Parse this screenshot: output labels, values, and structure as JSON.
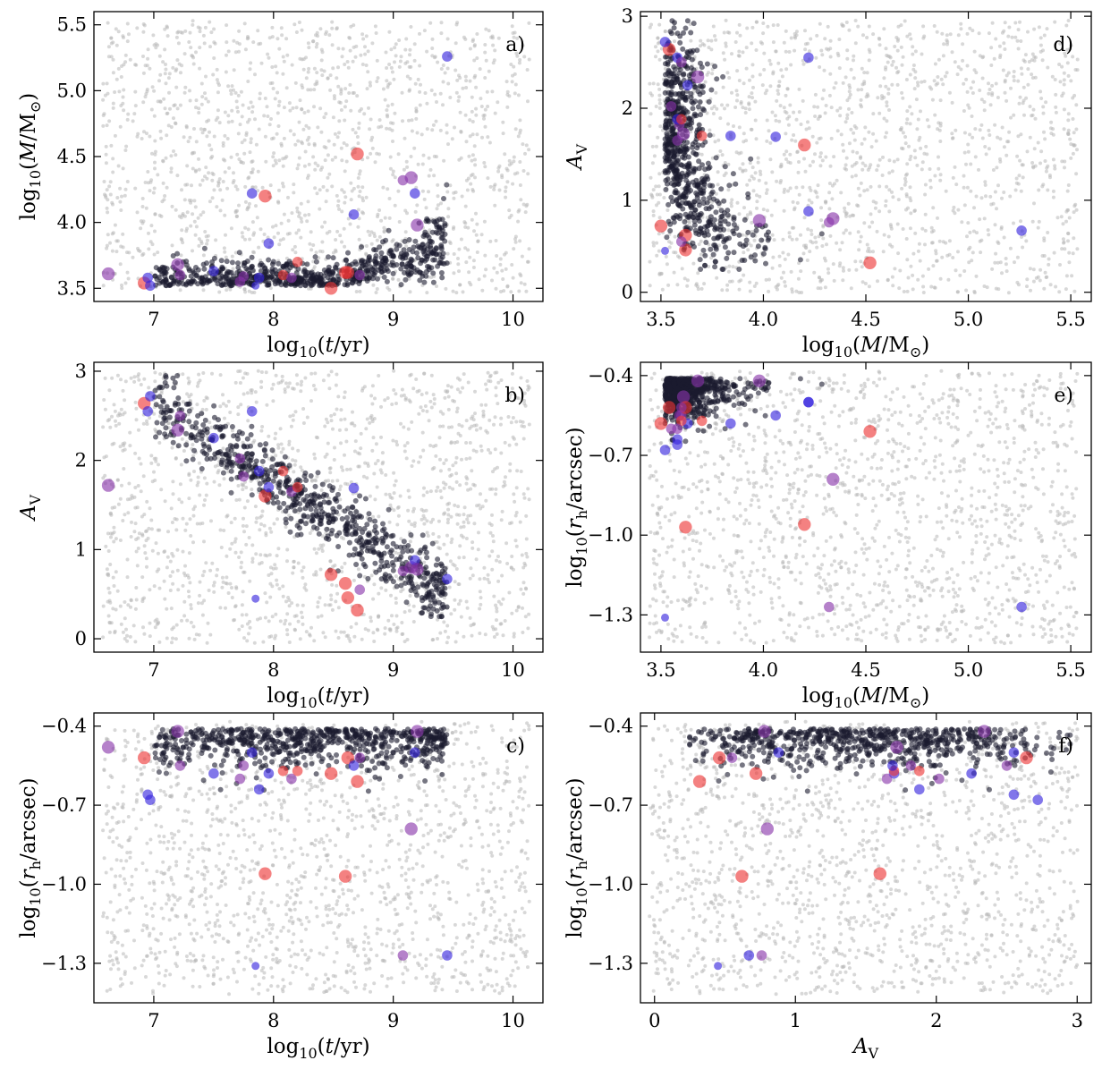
{
  "chart_data": [
    {
      "id": "a",
      "type": "scatter",
      "panel_label": "a)",
      "xlabel_parts": [
        "log",
        "10",
        "(",
        "t",
        "/yr)"
      ],
      "ylabel_parts": [
        "log",
        "10",
        "(",
        "M",
        "/M",
        "⊙",
        ")"
      ],
      "xlim": [
        6.5,
        10.25
      ],
      "ylim": [
        3.4,
        5.6
      ],
      "xticks": [
        7,
        8,
        9,
        10
      ],
      "xtick_labels": [
        "7",
        "8",
        "9",
        "10"
      ],
      "yticks": [
        3.5,
        4.0,
        4.5,
        5.0,
        5.5
      ],
      "ytick_labels": [
        "3.5",
        "4.0",
        "4.5",
        "5.0",
        "5.5"
      ],
      "x_var": "logt",
      "y_var": "logM",
      "background_grey_points": "uniform"
    },
    {
      "id": "b",
      "type": "scatter",
      "panel_label": "b)",
      "xlabel_parts": [
        "log",
        "10",
        "(",
        "t",
        "/yr)"
      ],
      "ylabel_parts": [
        "A",
        "V"
      ],
      "xlim": [
        6.5,
        10.25
      ],
      "ylim": [
        -0.15,
        3.1
      ],
      "xticks": [
        7,
        8,
        9,
        10
      ],
      "xtick_labels": [
        "7",
        "8",
        "9",
        "10"
      ],
      "yticks": [
        0,
        1,
        2,
        3
      ],
      "ytick_labels": [
        "0",
        "1",
        "2",
        "3"
      ],
      "x_var": "logt",
      "y_var": "Av",
      "background_grey_points": "uniform"
    },
    {
      "id": "c",
      "type": "scatter",
      "panel_label": "c)",
      "xlabel_parts": [
        "log",
        "10",
        "(",
        "t",
        "/yr)"
      ],
      "ylabel_parts": [
        "log",
        "10",
        "(",
        "r",
        "h",
        "/arcsec)"
      ],
      "xlim": [
        6.5,
        10.25
      ],
      "ylim": [
        -1.45,
        -0.35
      ],
      "xticks": [
        7,
        8,
        9,
        10
      ],
      "xtick_labels": [
        "7",
        "8",
        "9",
        "10"
      ],
      "yticks": [
        -1.3,
        -1.0,
        -0.7,
        -0.4
      ],
      "ytick_labels": [
        "−1.3",
        "−1.0",
        "−0.7",
        "−0.4"
      ],
      "x_var": "logt",
      "y_var": "logr",
      "background_grey_points": "uniform"
    },
    {
      "id": "d",
      "type": "scatter",
      "panel_label": "d)",
      "xlabel_parts": [
        "log",
        "10",
        "(",
        "M",
        "/M",
        "⊙",
        ")"
      ],
      "ylabel_parts": [
        "A",
        "V"
      ],
      "xlim": [
        3.4,
        5.6
      ],
      "ylim": [
        -0.1,
        3.05
      ],
      "xticks": [
        3.5,
        4.0,
        4.5,
        5.0,
        5.5
      ],
      "xtick_labels": [
        "3.5",
        "4.0",
        "4.5",
        "5.0",
        "5.5"
      ],
      "yticks": [
        0,
        1,
        2,
        3
      ],
      "ytick_labels": [
        "0",
        "1",
        "2",
        "3"
      ],
      "x_var": "logM",
      "y_var": "Av",
      "background_grey_points": "uniform"
    },
    {
      "id": "e",
      "type": "scatter",
      "panel_label": "e)",
      "xlabel_parts": [
        "log",
        "10",
        "(",
        "M",
        "/M",
        "⊙",
        ")"
      ],
      "ylabel_parts": [
        "log",
        "10",
        "(",
        "r",
        "h",
        "/arcsec)"
      ],
      "xlim": [
        3.4,
        5.6
      ],
      "ylim": [
        -1.44,
        -0.35
      ],
      "xticks": [
        3.5,
        4.0,
        4.5,
        5.0,
        5.5
      ],
      "xtick_labels": [
        "3.5",
        "4.0",
        "4.5",
        "5.0",
        "5.5"
      ],
      "yticks": [
        -1.3,
        -1.0,
        -0.7,
        -0.4
      ],
      "ytick_labels": [
        "−1.3",
        "−1.0",
        "−0.7",
        "−0.4"
      ],
      "x_var": "logM",
      "y_var": "logr",
      "background_grey_points": "uniform"
    },
    {
      "id": "f",
      "type": "scatter",
      "panel_label": "f)",
      "xlabel_parts": [
        "A",
        "V"
      ],
      "ylabel_parts": [
        "log",
        "10",
        "(",
        "r",
        "h",
        "/arcsec)"
      ],
      "xlim": [
        -0.1,
        3.1
      ],
      "ylim": [
        -1.45,
        -0.35
      ],
      "xticks": [
        0,
        1,
        2,
        3
      ],
      "xtick_labels": [
        "0",
        "1",
        "2",
        "3"
      ],
      "yticks": [
        -1.3,
        -1.0,
        -0.7,
        -0.4
      ],
      "ytick_labels": [
        "−1.3",
        "−1.0",
        "−0.7",
        "−0.4"
      ],
      "x_var": "Av",
      "y_var": "logr",
      "background_grey_points": "uniform"
    }
  ],
  "marker_colors": {
    "background": "#b8b8b8",
    "dark": "#1a1a2e",
    "blue": "#3322dd",
    "purple": "#8833aa",
    "red": "#ee3333"
  },
  "highlighted_clusters": [
    {
      "logt": 6.62,
      "logM": 3.61,
      "Av": 1.72,
      "logr": -0.48,
      "color": "purple",
      "size": "large"
    },
    {
      "logt": 6.92,
      "logM": 3.54,
      "Av": 2.64,
      "logr": -0.52,
      "color": "red",
      "size": "large"
    },
    {
      "logt": 6.95,
      "logM": 3.58,
      "Av": 2.55,
      "logr": -0.66,
      "color": "blue",
      "size": "medium"
    },
    {
      "logt": 6.97,
      "logM": 3.52,
      "Av": 2.72,
      "logr": -0.68,
      "color": "blue",
      "size": "medium"
    },
    {
      "logt": 7.2,
      "logM": 3.68,
      "Av": 2.34,
      "logr": -0.42,
      "color": "purple",
      "size": "large"
    },
    {
      "logt": 7.22,
      "logM": 3.6,
      "Av": 2.5,
      "logr": -0.55,
      "color": "purple",
      "size": "medium"
    },
    {
      "logt": 7.5,
      "logM": 3.63,
      "Av": 2.25,
      "logr": -0.58,
      "color": "blue",
      "size": "medium"
    },
    {
      "logt": 7.72,
      "logM": 3.55,
      "Av": 2.02,
      "logr": -0.6,
      "color": "purple",
      "size": "medium"
    },
    {
      "logt": 7.75,
      "logM": 3.59,
      "Av": 1.82,
      "logr": -0.55,
      "color": "purple",
      "size": "medium"
    },
    {
      "logt": 7.82,
      "logM": 4.22,
      "Av": 2.55,
      "logr": -0.5,
      "color": "blue",
      "size": "medium"
    },
    {
      "logt": 7.88,
      "logM": 3.58,
      "Av": 1.88,
      "logr": -0.64,
      "color": "blue",
      "size": "medium"
    },
    {
      "logt": 7.93,
      "logM": 4.2,
      "Av": 1.6,
      "logr": -0.96,
      "color": "red",
      "size": "large"
    },
    {
      "logt": 7.96,
      "logM": 3.84,
      "Av": 1.7,
      "logr": -0.58,
      "color": "blue",
      "size": "medium"
    },
    {
      "logt": 8.08,
      "logM": 3.6,
      "Av": 1.88,
      "logr": -0.57,
      "color": "red",
      "size": "medium"
    },
    {
      "logt": 8.15,
      "logM": 3.58,
      "Av": 1.65,
      "logr": -0.6,
      "color": "purple",
      "size": "medium"
    },
    {
      "logt": 8.2,
      "logM": 3.7,
      "Av": 1.7,
      "logr": -0.57,
      "color": "red",
      "size": "medium"
    },
    {
      "logt": 8.48,
      "logM": 3.5,
      "Av": 0.72,
      "logr": -0.58,
      "color": "red",
      "size": "large"
    },
    {
      "logt": 8.6,
      "logM": 3.62,
      "Av": 0.62,
      "logr": -0.97,
      "color": "red",
      "size": "large"
    },
    {
      "logt": 8.62,
      "logM": 3.62,
      "Av": 0.46,
      "logr": -0.52,
      "color": "red",
      "size": "large"
    },
    {
      "logt": 8.67,
      "logM": 4.06,
      "Av": 1.69,
      "logr": -0.55,
      "color": "blue",
      "size": "medium"
    },
    {
      "logt": 8.7,
      "logM": 4.52,
      "Av": 0.32,
      "logr": -0.61,
      "color": "red",
      "size": "large"
    },
    {
      "logt": 8.72,
      "logM": 3.6,
      "Av": 0.55,
      "logr": -0.52,
      "color": "purple",
      "size": "medium"
    },
    {
      "logt": 9.08,
      "logM": 4.32,
      "Av": 0.76,
      "logr": -1.27,
      "color": "purple",
      "size": "medium"
    },
    {
      "logt": 9.15,
      "logM": 4.34,
      "Av": 0.8,
      "logr": -0.79,
      "color": "purple",
      "size": "large"
    },
    {
      "logt": 9.18,
      "logM": 4.22,
      "Av": 0.88,
      "logr": -0.5,
      "color": "blue",
      "size": "medium"
    },
    {
      "logt": 9.2,
      "logM": 3.98,
      "Av": 0.78,
      "logr": -0.42,
      "color": "purple",
      "size": "large"
    },
    {
      "logt": 9.45,
      "logM": 5.26,
      "Av": 0.67,
      "logr": -1.27,
      "color": "blue",
      "size": "medium"
    },
    {
      "logt": 7.85,
      "logM": 3.52,
      "Av": 0.45,
      "logr": -1.31,
      "color": "blue",
      "size": "small"
    }
  ]
}
